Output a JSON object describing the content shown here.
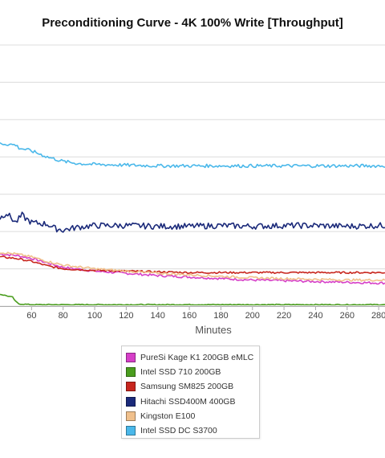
{
  "chart_data": {
    "type": "line",
    "title": "Preconditioning Curve - 4K 100% Write [Throughput]",
    "xlabel": "Minutes",
    "ylabel": "",
    "xlim": [
      40,
      284
    ],
    "ylim": [
      0,
      350
    ],
    "x_ticks": [
      60,
      80,
      100,
      120,
      140,
      160,
      180,
      200,
      220,
      240,
      260,
      280
    ],
    "grid": true,
    "legend_position": "bottom-center",
    "series": [
      {
        "name": "PureSi Kage K1 200GB eMLC",
        "color": "#d63fc8",
        "x": [
          40,
          50,
          60,
          70,
          80,
          100,
          120,
          140,
          160,
          180,
          200,
          220,
          240,
          260,
          280,
          284
        ],
        "y": [
          70,
          68,
          64,
          58,
          52,
          47,
          44,
          41,
          39,
          37,
          35,
          34,
          33,
          32,
          31,
          31
        ],
        "noise": 1.5
      },
      {
        "name": "Intel SSD 710 200GB",
        "color": "#4a9d1e",
        "x": [
          40,
          48,
          50,
          52,
          60,
          100,
          150,
          200,
          250,
          284
        ],
        "y": [
          16,
          12,
          6,
          3,
          2,
          2,
          2,
          2,
          2,
          2
        ],
        "noise": 0.6
      },
      {
        "name": "Samsung SM825 200GB",
        "color": "#c8261e",
        "x": [
          40,
          50,
          60,
          70,
          80,
          100,
          120,
          140,
          160,
          180,
          200,
          220,
          240,
          260,
          280,
          284
        ],
        "y": [
          66,
          64,
          60,
          54,
          50,
          48,
          47,
          46,
          45,
          45,
          45,
          45,
          45,
          45,
          45,
          45
        ],
        "noise": 1.2
      },
      {
        "name": "Hitachi SSD400M 400GB",
        "color": "#1b2a7a",
        "x": [
          40,
          44,
          50,
          54,
          56,
          60,
          70,
          75,
          80,
          90,
          100,
          120,
          140,
          160,
          180,
          200,
          220,
          240,
          260,
          280,
          284
        ],
        "y": [
          118,
          125,
          112,
          122,
          118,
          112,
          110,
          104,
          102,
          106,
          108,
          108,
          107,
          107,
          108,
          107,
          108,
          108,
          107,
          108,
          108
        ],
        "noise": 4
      },
      {
        "name": "Kingston E100",
        "color": "#f0c08c",
        "x": [
          40,
          50,
          60,
          70,
          80,
          100,
          120,
          140,
          160,
          180,
          200,
          220,
          240,
          260,
          280,
          284
        ],
        "y": [
          72,
          70,
          66,
          60,
          55,
          50,
          47,
          44,
          42,
          40,
          38,
          37,
          36,
          35,
          35,
          35
        ],
        "noise": 1.5
      },
      {
        "name": "Intel SSD DC S3700",
        "color": "#4ab8ea",
        "x": [
          40,
          50,
          52,
          60,
          70,
          80,
          90,
          100,
          120,
          140,
          160,
          180,
          200,
          220,
          240,
          260,
          280,
          284
        ],
        "y": [
          218,
          216,
          212,
          208,
          200,
          194,
          191,
          190,
          189,
          188,
          188,
          188,
          188,
          188,
          188,
          188,
          188,
          188
        ],
        "noise": 2.2
      }
    ]
  }
}
